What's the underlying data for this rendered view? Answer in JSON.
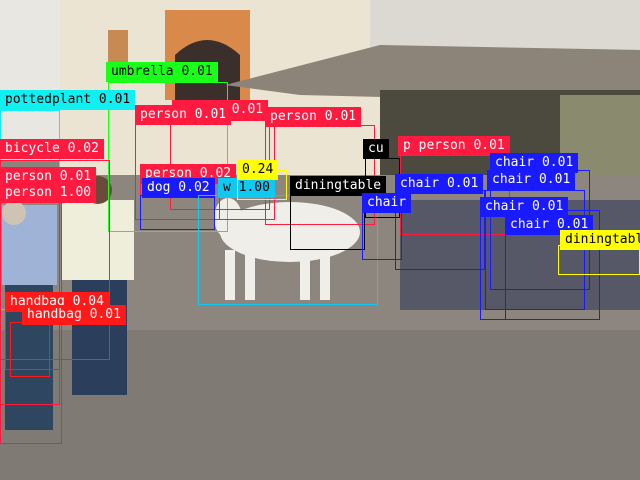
{
  "colors": {
    "person": "#ff1a40",
    "chair": "#1a1aff",
    "diningtable": "#000000",
    "umbrella": "#1aff1a",
    "pottedplant": "#10f0f0",
    "bicycle": "#ff1a40",
    "handbag": "#ff1a1a",
    "dog": "#1a1aff",
    "cow": "#10c8f0",
    "cup": "#000000",
    "misc": "#ffff00"
  },
  "detections": [
    {
      "label": "umbrella 0.01",
      "cls": "umbrella"
    },
    {
      "label": "pottedplant 0.01",
      "cls": "pottedplant"
    },
    {
      "label": "bicycle 0.02",
      "cls": "bicycle"
    },
    {
      "label": "person 0.01",
      "cls": "person"
    },
    {
      "label": "person 1.00",
      "cls": "person"
    },
    {
      "label": "handbag 0.04",
      "cls": "handbag"
    },
    {
      "label": "handbag 0.01",
      "cls": "handbag"
    },
    {
      "label": "person 0.01",
      "cls": "person"
    },
    {
      "label": "person 0.01",
      "cls": "person"
    },
    {
      "label": "person 0.01",
      "cls": "person"
    },
    {
      "label": "person 0.02",
      "cls": "person"
    },
    {
      "label": "dog 0.02",
      "cls": "dog"
    },
    {
      "label": "w 1.00",
      "cls": "cow"
    },
    {
      "label": "diningtable",
      "cls": "diningtable"
    },
    {
      "label": "cu",
      "cls": "cup"
    },
    {
      "label": "p person 0.01",
      "cls": "person"
    },
    {
      "label": "chair 0.01",
      "cls": "chair"
    },
    {
      "label": "chair 0.01",
      "cls": "chair"
    },
    {
      "label": "chair 0.01",
      "cls": "chair"
    },
    {
      "label": "chair 0.01",
      "cls": "chair"
    },
    {
      "label": "chair 0.01",
      "cls": "chair"
    },
    {
      "label": "chair",
      "cls": "chair"
    },
    {
      "label": "diningtable",
      "cls": "misc"
    },
    {
      "label": "0.24",
      "cls": "misc"
    }
  ]
}
